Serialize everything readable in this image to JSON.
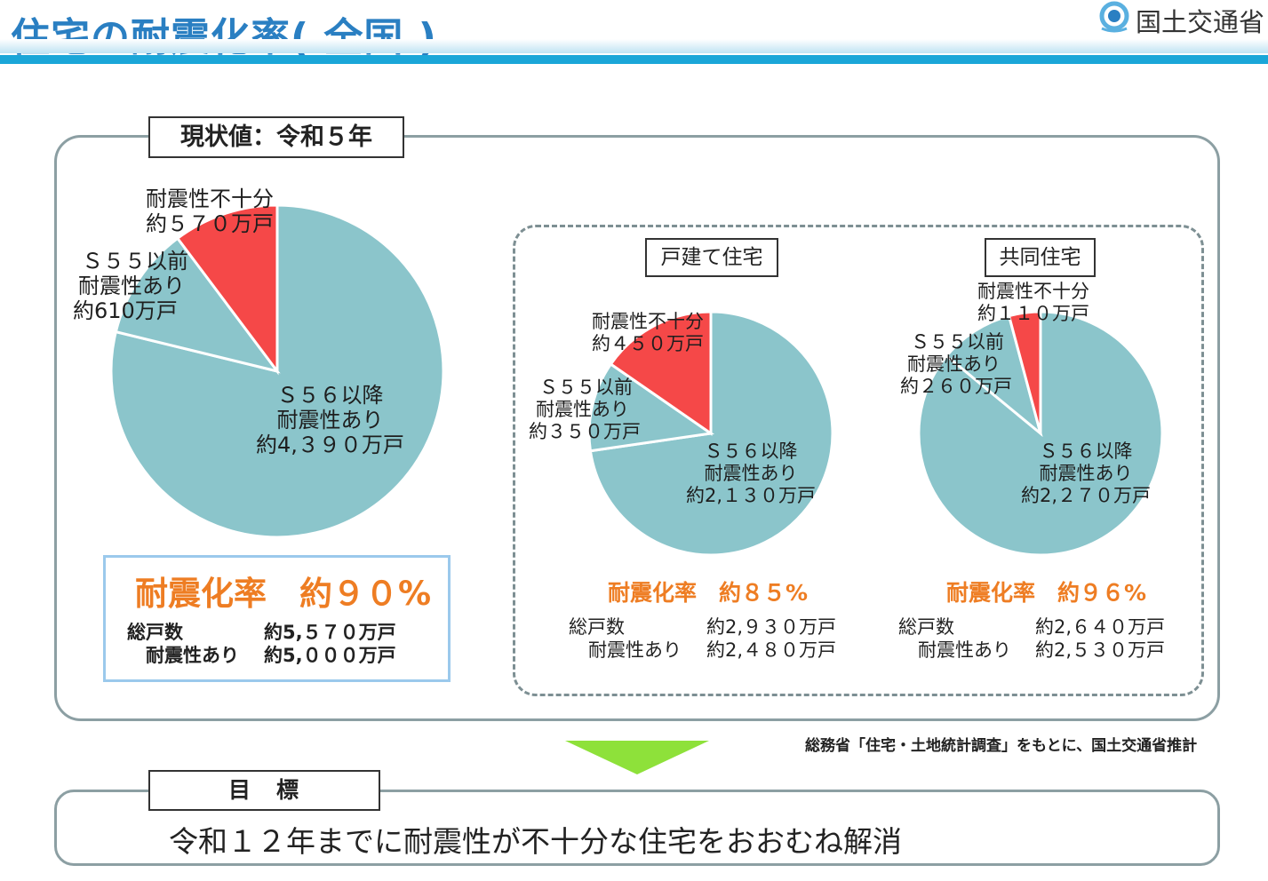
{
  "header": {
    "title": "住宅の耐震化率( 全国 )",
    "ministry": "国土交通省",
    "logo_icon": "mlit-logo-icon"
  },
  "current": {
    "label": "現状値：令和５年",
    "rate": "耐震化率　約９０%",
    "total_label": "総戸数",
    "total_value": "約5,５７０万戸",
    "resistant_label": "耐震性あり",
    "resistant_value": "約5,０００万戸"
  },
  "detached": {
    "label": "戸建て住宅",
    "rate": "耐震化率　約８５%",
    "total_label": "総戸数",
    "total_value": "約2,９３０万戸",
    "resistant_label": "耐震性あり",
    "resistant_value": "約2,４８０万戸"
  },
  "apartment": {
    "label": "共同住宅",
    "rate": "耐震化率　約９６%",
    "total_label": "総戸数",
    "total_value": "約2,６４０万戸",
    "resistant_label": "耐震性あり",
    "resistant_value": "約2,５３０万戸"
  },
  "source": "総務省「住宅・土地統計調査」をもとに、国土交通省推計",
  "goal": {
    "label": "目　標",
    "text": "令和１２年までに耐震性が不十分な住宅をおおむね解消"
  },
  "colors": {
    "insufficient": "#f54848",
    "resistant": "#8bc5cb",
    "accent": "#ee7d23",
    "title": "#2a7fc2"
  },
  "chart_data": [
    {
      "type": "pie",
      "title": "現状値：令和５年",
      "slices": [
        {
          "line1": "Ｓ５６以降",
          "line2": "耐震性あり",
          "line3": "約4,３９０万戸",
          "value": 4390,
          "color": "#8bc5cb"
        },
        {
          "line1": "Ｓ５５以前",
          "line2": "耐震性あり",
          "line3": "約610万戸",
          "value": 610,
          "color": "#8bc5cb"
        },
        {
          "line1": "耐震性不十分",
          "line2": "約５７０万戸",
          "value": 570,
          "color": "#f54848"
        }
      ]
    },
    {
      "type": "pie",
      "title": "戸建て住宅",
      "slices": [
        {
          "line1": "Ｓ５６以降",
          "line2": "耐震性あり",
          "line3": "約2,１３０万戸",
          "value": 2130,
          "color": "#8bc5cb"
        },
        {
          "line1": "Ｓ５５以前",
          "line2": "耐震性あり",
          "line3": "約３５０万戸",
          "value": 350,
          "color": "#8bc5cb"
        },
        {
          "line1": "耐震性不十分",
          "line2": "約４５０万戸",
          "value": 450,
          "color": "#f54848"
        }
      ]
    },
    {
      "type": "pie",
      "title": "共同住宅",
      "slices": [
        {
          "line1": "Ｓ５６以降",
          "line2": "耐震性あり",
          "line3": "約2,２７０万戸",
          "value": 2270,
          "color": "#8bc5cb"
        },
        {
          "line1": "Ｓ５５以前",
          "line2": "耐震性あり",
          "line3": "約２６０万戸",
          "value": 260,
          "color": "#8bc5cb"
        },
        {
          "line1": "耐震性不十分",
          "line2": "約１１０万戸",
          "value": 110,
          "color": "#f54848"
        }
      ]
    }
  ]
}
